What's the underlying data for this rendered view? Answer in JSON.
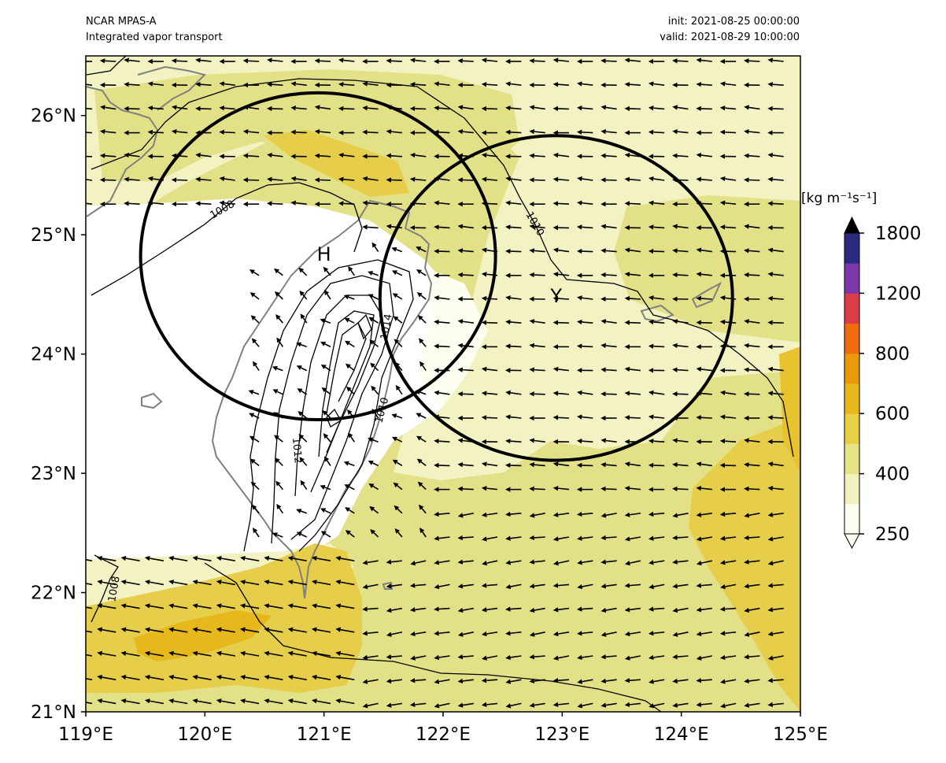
{
  "header": {
    "model": "NCAR MPAS-A",
    "field": "Integrated vapor transport",
    "init": "init: 2021-08-25 00:00:00",
    "valid": "valid: 2021-08-29 10:00:00"
  },
  "map": {
    "lon_ticks": [
      "119°E",
      "120°E",
      "121°E",
      "122°E",
      "123°E",
      "124°E",
      "125°E"
    ],
    "lat_ticks": [
      "21°N",
      "22°N",
      "23°N",
      "24°N",
      "25°N",
      "26°N"
    ],
    "extent": {
      "lon": [
        119,
        125
      ],
      "lat": [
        21,
        26.5
      ]
    },
    "markers": [
      {
        "label": "H",
        "lon": 121.0,
        "lat": 24.85
      },
      {
        "label": "Y",
        "lon": 122.95,
        "lat": 24.5
      }
    ],
    "circles": [
      {
        "center_lon": 120.95,
        "center_lat": 24.82,
        "radius_deg": 1.49
      },
      {
        "center_lon": 122.95,
        "center_lat": 24.47,
        "radius_deg": 1.48
      }
    ],
    "isobar_labels": [
      "1008",
      "1010",
      "1014",
      "1010",
      "1012",
      "1008"
    ]
  },
  "colorbar": {
    "units": "[kg m⁻¹s⁻¹]",
    "tick_labels": [
      "250",
      "400",
      "600",
      "800",
      "1200",
      "1800"
    ],
    "colors": [
      "#fdfdf0",
      "#f2f2c0",
      "#e5e385",
      "#e8cf48",
      "#e6b81c",
      "#e8990c",
      "#ee6c10",
      "#dc3c48",
      "#7b38a8",
      "#2a2a80"
    ],
    "extend": "both"
  }
}
